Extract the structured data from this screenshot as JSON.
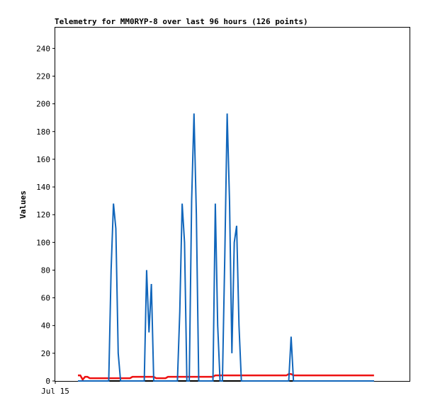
{
  "chart_data": {
    "type": "line",
    "title": "Telemetry for MM0RYP-8 over last 96 hours (126 points)",
    "xlabel": "",
    "ylabel": "Values",
    "ylim": [
      0,
      255
    ],
    "yticks": [
      0,
      20,
      40,
      60,
      80,
      100,
      120,
      140,
      160,
      180,
      200,
      220,
      240
    ],
    "xtick_labels": [
      "Jul 15"
    ],
    "grid": false,
    "legend": "none",
    "colors": {
      "series_1": "#1166bb",
      "series_2": "#ee1111",
      "series_3": "#000000"
    },
    "x": [
      0,
      1,
      2,
      3,
      4,
      5,
      6,
      7,
      8,
      9,
      10,
      11,
      12,
      13,
      14,
      15,
      16,
      17,
      18,
      19,
      20,
      21,
      22,
      23,
      24,
      25,
      26,
      27,
      28,
      29,
      30,
      31,
      32,
      33,
      34,
      35,
      36,
      37,
      38,
      39,
      40,
      41,
      42,
      43,
      44,
      45,
      46,
      47,
      48,
      49,
      50,
      51,
      52,
      53,
      54,
      55,
      56,
      57,
      58,
      59,
      60,
      61,
      62,
      63,
      64,
      65,
      66,
      67,
      68,
      69,
      70,
      71,
      72,
      73,
      74,
      75,
      76,
      77,
      78,
      79,
      80,
      81,
      82,
      83,
      84,
      85,
      86,
      87,
      88,
      89,
      90,
      91,
      92,
      93,
      94,
      95,
      96,
      97,
      98,
      99,
      100,
      101,
      102,
      103,
      104,
      105,
      106,
      107,
      108,
      109,
      110,
      111,
      112,
      113,
      114,
      115,
      116,
      117,
      118,
      119,
      120,
      121,
      122,
      123,
      124,
      125
    ],
    "series": [
      {
        "values": [
          0,
          0,
          0,
          0,
          0,
          0,
          0,
          0,
          0,
          0,
          0,
          0,
          0,
          0,
          80,
          128,
          110,
          20,
          0,
          0,
          0,
          0,
          0,
          0,
          0,
          0,
          0,
          0,
          0,
          80,
          35,
          70,
          0,
          0,
          0,
          0,
          0,
          0,
          0,
          0,
          0,
          0,
          0,
          50,
          128,
          100,
          0,
          0,
          130,
          193,
          120,
          0,
          0,
          0,
          0,
          0,
          0,
          0,
          128,
          40,
          0,
          0,
          90,
          193,
          130,
          20,
          100,
          112,
          40,
          0,
          0,
          0,
          0,
          0,
          0,
          0,
          0,
          0,
          0,
          0,
          0,
          0,
          0,
          0,
          0,
          0,
          0,
          0,
          0,
          0,
          32,
          0,
          0,
          0,
          0,
          0,
          0,
          0,
          0,
          0,
          0,
          0,
          0,
          0,
          0,
          0,
          0,
          0,
          0,
          0,
          0,
          0,
          0,
          0,
          0,
          0,
          0,
          0,
          0,
          0,
          0,
          0,
          0,
          0,
          0,
          0
        ]
      },
      {
        "values": [
          4,
          4,
          1,
          3,
          3,
          2,
          2,
          2,
          2,
          2,
          2,
          2,
          2,
          2,
          2,
          2,
          2,
          2,
          2,
          2,
          2,
          2,
          2,
          3,
          3,
          3,
          3,
          3,
          3,
          3,
          3,
          3,
          3,
          2,
          2,
          2,
          2,
          2,
          3,
          3,
          3,
          3,
          3,
          3,
          3,
          3,
          3,
          3,
          3,
          3,
          3,
          3,
          3,
          3,
          3,
          3,
          3,
          3,
          4,
          4,
          4,
          4,
          4,
          4,
          4,
          4,
          4,
          4,
          4,
          4,
          4,
          4,
          4,
          4,
          4,
          4,
          4,
          4,
          4,
          4,
          4,
          4,
          4,
          4,
          4,
          4,
          4,
          4,
          4,
          5,
          5,
          4,
          4,
          4,
          4,
          4,
          4,
          4,
          4,
          4,
          4,
          4,
          4,
          4,
          4,
          4,
          4,
          4,
          4,
          4,
          4,
          4,
          4,
          4,
          4,
          4,
          4,
          4,
          4,
          4,
          4,
          4,
          4,
          4,
          4,
          4
        ]
      },
      {
        "values": [
          0,
          0,
          0,
          0,
          0,
          0,
          0,
          0,
          0,
          0,
          0,
          0,
          0,
          0,
          0,
          0,
          0,
          0,
          0,
          0,
          0,
          0,
          0,
          0,
          0,
          0,
          0,
          0,
          0,
          0,
          0,
          0,
          0,
          0,
          0,
          0,
          0,
          0,
          0,
          0,
          0,
          0,
          0,
          0,
          0,
          0,
          0,
          0,
          0,
          0,
          0,
          0,
          0,
          0,
          0,
          0,
          0,
          0,
          0,
          0,
          0,
          0,
          0,
          0,
          0,
          0,
          0,
          0,
          0,
          0,
          0,
          0,
          0,
          0,
          0,
          0,
          0,
          0,
          0,
          0,
          0,
          0,
          0,
          0,
          0,
          0,
          0,
          0,
          0,
          0,
          0,
          0,
          0,
          0,
          0,
          0,
          0,
          0,
          0,
          0,
          0,
          0,
          0,
          0,
          0,
          0,
          0,
          0,
          0,
          0,
          0,
          0,
          0,
          0,
          0,
          0,
          0,
          0,
          0,
          0,
          0,
          0,
          0,
          0,
          0,
          0
        ]
      }
    ]
  }
}
